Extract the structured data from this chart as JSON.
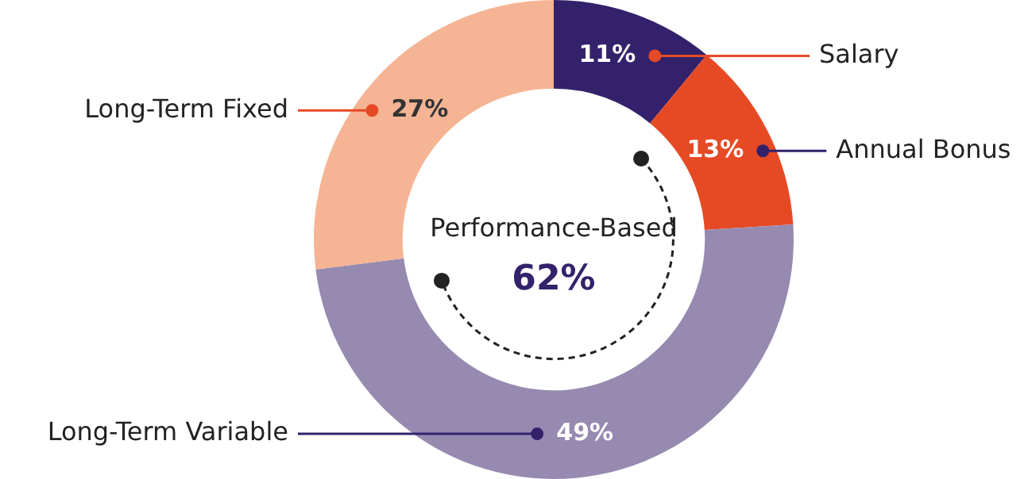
{
  "chart_data": {
    "type": "donut",
    "categories": [
      "Salary",
      "Annual Bonus",
      "Long-Term Variable",
      "Long-Term Fixed"
    ],
    "values": [
      11,
      13,
      49,
      27
    ],
    "colors": [
      "#33226b",
      "#e64a25",
      "#968ab0",
      "#f5b494"
    ],
    "value_labels": [
      "11%",
      "13%",
      "49%",
      "27%"
    ],
    "annotations": [
      "Performance-Based",
      "62%"
    ]
  }
}
